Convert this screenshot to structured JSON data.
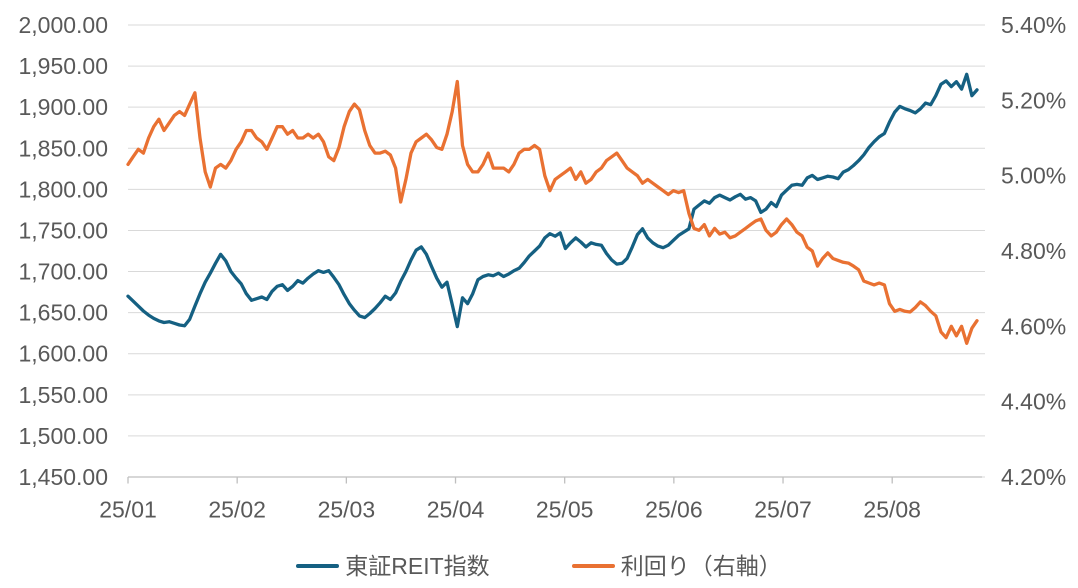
{
  "chart_data": {
    "type": "line",
    "title": "",
    "legend_position": "bottom",
    "grid": true,
    "colors": {
      "grid": "#D9D9D9",
      "axis": "#BFBFBF",
      "text": "#595959",
      "background": "#FFFFFF"
    },
    "x_axis": {
      "tick_labels": [
        "25/01",
        "25/02",
        "25/03",
        "25/04",
        "25/05",
        "25/06",
        "25/07",
        "25/08"
      ]
    },
    "left_axis": {
      "min": 1450,
      "max": 2000,
      "step": 50,
      "tick_labels": [
        "2,000.00",
        "1,950.00",
        "1,900.00",
        "1,850.00",
        "1,800.00",
        "1,750.00",
        "1,700.00",
        "1,650.00",
        "1,600.00",
        "1,550.00",
        "1,500.00",
        "1,450.00"
      ]
    },
    "right_axis": {
      "min": 4.2,
      "max": 5.4,
      "step": 0.2,
      "tick_labels": [
        "5.40%",
        "5.20%",
        "5.00%",
        "4.80%",
        "4.60%",
        "4.40%",
        "4.20%"
      ]
    },
    "series": [
      {
        "name": "東証REIT指数",
        "axis": "left",
        "color": "#156082",
        "values": [
          1670,
          1664,
          1658,
          1652,
          1647,
          1643,
          1640,
          1638,
          1639,
          1637,
          1635,
          1634,
          1642,
          1658,
          1673,
          1687,
          1698,
          1710,
          1721,
          1713,
          1700,
          1692,
          1685,
          1673,
          1665,
          1667,
          1669,
          1666,
          1676,
          1682,
          1684,
          1677,
          1682,
          1689,
          1686,
          1692,
          1697,
          1701,
          1699,
          1701,
          1693,
          1684,
          1672,
          1661,
          1653,
          1646,
          1644,
          1649,
          1655,
          1662,
          1670,
          1666,
          1674,
          1688,
          1700,
          1714,
          1726,
          1730,
          1721,
          1706,
          1692,
          1681,
          1687,
          1660,
          1633,
          1668,
          1661,
          1673,
          1690,
          1694,
          1696,
          1695,
          1698,
          1694,
          1697,
          1701,
          1704,
          1711,
          1719,
          1725,
          1731,
          1741,
          1746,
          1743,
          1747,
          1728,
          1735,
          1741,
          1736,
          1730,
          1735,
          1733,
          1732,
          1722,
          1714,
          1709,
          1710,
          1716,
          1730,
          1745,
          1752,
          1741,
          1735,
          1731,
          1729,
          1732,
          1738,
          1744,
          1748,
          1752,
          1776,
          1781,
          1786,
          1783,
          1790,
          1793,
          1790,
          1787,
          1791,
          1794,
          1788,
          1790,
          1786,
          1772,
          1776,
          1784,
          1779,
          1793,
          1799,
          1805,
          1806,
          1805,
          1814,
          1817,
          1812,
          1814,
          1816,
          1815,
          1813,
          1821,
          1824,
          1829,
          1835,
          1842,
          1851,
          1858,
          1864,
          1868,
          1882,
          1894,
          1901,
          1898,
          1896,
          1893,
          1898,
          1905,
          1903,
          1914,
          1928,
          1932,
          1925,
          1931,
          1922,
          1940,
          1914,
          1921
        ]
      },
      {
        "name": "利回り（右軸）",
        "axis": "right",
        "color": "#E97132",
        "values": [
          5.03,
          5.05,
          5.07,
          5.06,
          5.1,
          5.13,
          5.15,
          5.12,
          5.14,
          5.16,
          5.17,
          5.16,
          5.19,
          5.22,
          5.1,
          5.01,
          4.97,
          5.02,
          5.03,
          5.02,
          5.04,
          5.07,
          5.09,
          5.12,
          5.12,
          5.1,
          5.09,
          5.07,
          5.1,
          5.13,
          5.13,
          5.11,
          5.12,
          5.1,
          5.1,
          5.11,
          5.1,
          5.11,
          5.09,
          5.05,
          5.04,
          5.075,
          5.13,
          5.17,
          5.19,
          5.175,
          5.12,
          5.08,
          5.06,
          5.06,
          5.065,
          5.055,
          5.02,
          4.93,
          4.99,
          5.06,
          5.09,
          5.1,
          5.11,
          5.095,
          5.075,
          5.07,
          5.11,
          5.17,
          5.25,
          5.08,
          5.03,
          5.01,
          5.01,
          5.03,
          5.06,
          5.02,
          5.02,
          5.02,
          5.01,
          5.03,
          5.06,
          5.07,
          5.07,
          5.08,
          5.07,
          5.0,
          4.96,
          4.99,
          5.0,
          5.01,
          5.02,
          4.99,
          5.01,
          4.98,
          4.99,
          5.01,
          5.02,
          5.04,
          5.05,
          5.06,
          5.04,
          5.02,
          5.01,
          5.0,
          4.98,
          4.99,
          4.98,
          4.97,
          4.96,
          4.95,
          4.96,
          4.955,
          4.96,
          4.9,
          4.86,
          4.855,
          4.87,
          4.84,
          4.86,
          4.845,
          4.85,
          4.835,
          4.84,
          4.85,
          4.86,
          4.87,
          4.88,
          4.885,
          4.855,
          4.84,
          4.85,
          4.87,
          4.885,
          4.87,
          4.85,
          4.84,
          4.81,
          4.8,
          4.76,
          4.78,
          4.795,
          4.78,
          4.775,
          4.77,
          4.768,
          4.76,
          4.75,
          4.72,
          4.715,
          4.71,
          4.715,
          4.71,
          4.66,
          4.64,
          4.645,
          4.64,
          4.638,
          4.65,
          4.665,
          4.655,
          4.64,
          4.628,
          4.585,
          4.57,
          4.6,
          4.575,
          4.6,
          4.555,
          4.595,
          4.615
        ]
      }
    ]
  }
}
